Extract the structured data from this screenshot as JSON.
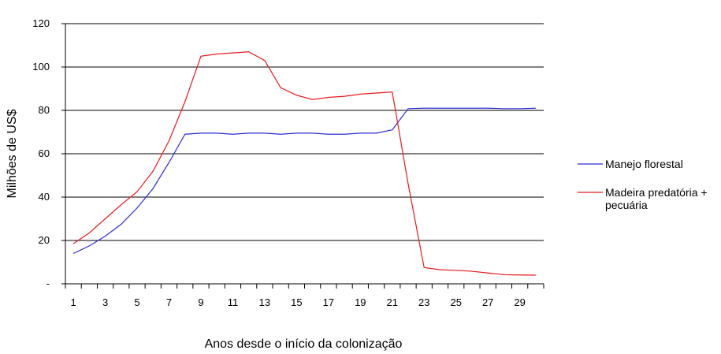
{
  "chart_data": {
    "type": "line",
    "y_label": "Milhões de US$",
    "x_label": "Anos desde o início da colonização",
    "categories": [
      1,
      null,
      3,
      null,
      5,
      null,
      7,
      null,
      9,
      null,
      11,
      null,
      13,
      null,
      15,
      null,
      17,
      null,
      19,
      null,
      21,
      null,
      23,
      null,
      25,
      null,
      27,
      null,
      29,
      null
    ],
    "series": [
      {
        "name": "Manejo florestal",
        "color": "#2b2bd4",
        "values": [
          14,
          17.5,
          22,
          27.5,
          35,
          44,
          56,
          69,
          69.5,
          69.5,
          69,
          69.5,
          69.5,
          69,
          69.5,
          69.5,
          69,
          69,
          69.5,
          69.5,
          71,
          80.8,
          81,
          81,
          81,
          81,
          81,
          80.8,
          80.8,
          81
        ]
      },
      {
        "name": "Madeira predatória + pecuária",
        "color": "#e8191d",
        "values": [
          18.5,
          23.5,
          30,
          36.5,
          42.5,
          52,
          66,
          84,
          105,
          106,
          106.5,
          107,
          103,
          90.5,
          87,
          85,
          86,
          86.5,
          87.5,
          88,
          88.5,
          46,
          7.5,
          6.5,
          6.2,
          5.8,
          5,
          4.2,
          4.1,
          4
        ]
      }
    ],
    "ylim": [
      0,
      120
    ],
    "yticks": [
      {
        "value": 0,
        "label": "-"
      },
      20,
      40,
      60,
      80,
      100,
      120
    ],
    "grid": true,
    "legend": "right"
  }
}
